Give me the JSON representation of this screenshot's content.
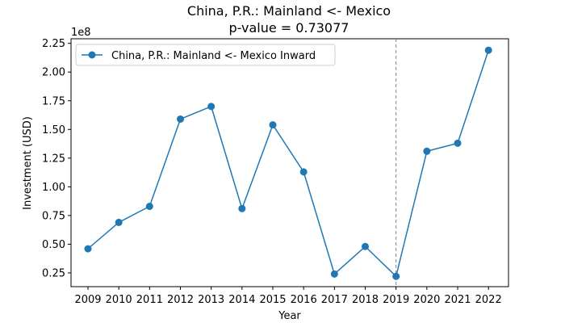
{
  "chart_data": {
    "type": "line",
    "title": "China, P.R.: Mainland <- Mexico",
    "subtitle": "p-value = 0.73077",
    "xlabel": "Year",
    "ylabel": "Investment (USD)",
    "y_offset_label": "1e8",
    "x": [
      2009,
      2010,
      2011,
      2012,
      2013,
      2014,
      2015,
      2016,
      2017,
      2018,
      2019,
      2020,
      2021,
      2022
    ],
    "x_tick_labels": [
      "2009",
      "2010",
      "2011",
      "2012",
      "2013",
      "2014",
      "2015",
      "2016",
      "2017",
      "2018",
      "2019",
      "2020",
      "2021",
      "2022"
    ],
    "y_ticks": [
      25000000,
      50000000,
      75000000,
      100000000,
      125000000,
      150000000,
      175000000,
      200000000,
      225000000
    ],
    "y_tick_labels": [
      "0.25",
      "0.50",
      "0.75",
      "1.00",
      "1.25",
      "1.50",
      "1.75",
      "2.00",
      "2.25"
    ],
    "ylim": [
      13000000,
      229000000
    ],
    "xlim": [
      2008.45,
      2022.65
    ],
    "series": [
      {
        "name": "China, P.R.: Mainland <- Mexico Inward",
        "color": "#1f77b4",
        "marker": "circle",
        "values": [
          46000000,
          69000000,
          83000000,
          159000000,
          170000000,
          81000000,
          154000000,
          113000000,
          24000000,
          48000000,
          22000000,
          131000000,
          138000000,
          219000000
        ]
      }
    ],
    "reference_line": {
      "x": 2019,
      "style": "dashed",
      "color": "#808080"
    },
    "legend": {
      "placement": "top-left"
    },
    "grid": false
  }
}
